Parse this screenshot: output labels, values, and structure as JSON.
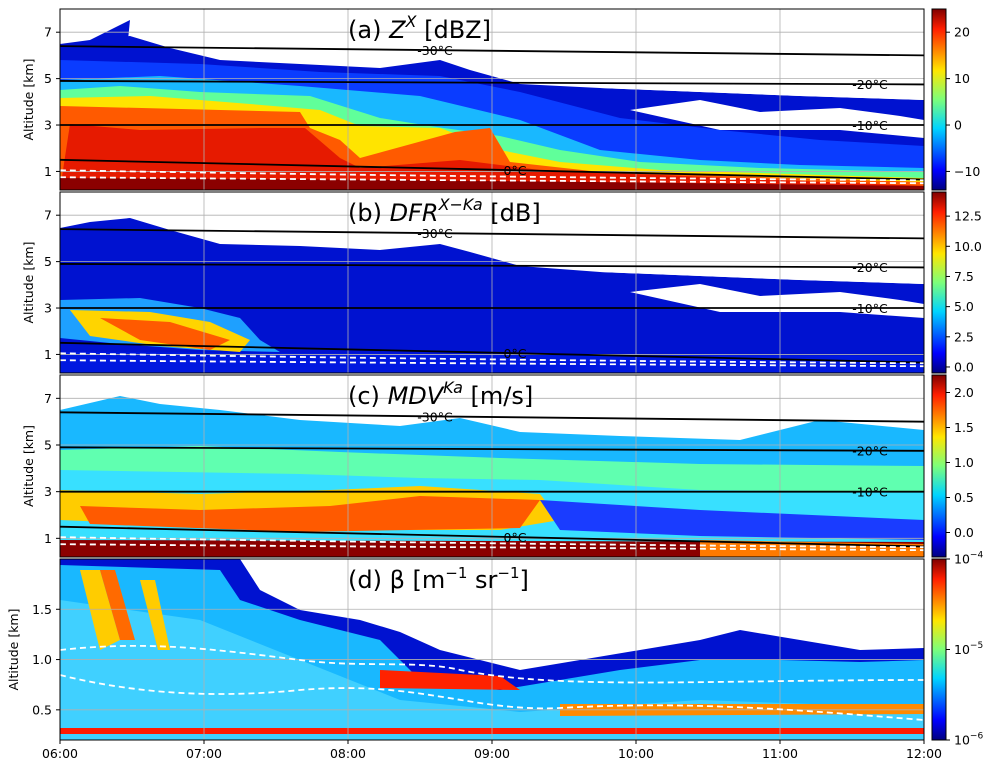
{
  "chart_data": [
    {
      "type": "heatmap",
      "panel": "a",
      "title": "(a) Z",
      "title_sup": "X",
      "title_unit": " [dBZ]",
      "ylabel": "Altitude [km]",
      "ylim": [
        0.2,
        8.0
      ],
      "yticks": [
        1,
        3,
        5,
        7
      ],
      "ytick_labels": [
        "1",
        "3",
        "5",
        "7"
      ],
      "colorbar": {
        "scale": "linear",
        "range": [
          -14,
          25
        ],
        "ticks": [
          -10,
          0,
          10,
          20
        ],
        "tick_labels": [
          "−10",
          "0",
          "10",
          "20"
        ]
      },
      "isotherms": [
        {
          "label": "-30$^\\circ$C",
          "text": "-30",
          "start": 6.4,
          "end": 6.0
        },
        {
          "label": "-20",
          "text": "-20",
          "start": 4.9,
          "end": 4.75
        },
        {
          "label": "-10",
          "text": "-10",
          "start": 3.0,
          "end": 3.0
        },
        {
          "label": "0",
          "text": "0",
          "start": 1.5,
          "end": 0.65
        }
      ]
    },
    {
      "type": "heatmap",
      "panel": "b",
      "title": "(b) DFR",
      "title_sup": "X−Ka",
      "title_unit": " [dB]",
      "ylabel": "Altitude [km]",
      "ylim": [
        0.2,
        8.0
      ],
      "yticks": [
        1,
        3,
        5,
        7
      ],
      "ytick_labels": [
        "1",
        "3",
        "5",
        "7"
      ],
      "colorbar": {
        "scale": "linear",
        "range": [
          -0.5,
          14.5
        ],
        "ticks": [
          0,
          2.5,
          5,
          7.5,
          10,
          12.5
        ],
        "tick_labels": [
          "0.0",
          "2.5",
          "5.0",
          "7.5",
          "10.0",
          "12.5"
        ]
      },
      "isotherms": [
        {
          "text": "-30",
          "start": 6.4,
          "end": 6.0
        },
        {
          "text": "-20",
          "start": 4.9,
          "end": 4.75
        },
        {
          "text": "-10",
          "start": 3.0,
          "end": 3.0
        },
        {
          "text": "0",
          "start": 1.5,
          "end": 0.65
        }
      ]
    },
    {
      "type": "heatmap",
      "panel": "c",
      "title": "(c) MDV",
      "title_sup": "Ka",
      "title_unit": " [m/s]",
      "ylabel": "Altitude [km]",
      "ylim": [
        0.2,
        8.0
      ],
      "yticks": [
        1,
        3,
        5,
        7
      ],
      "ytick_labels": [
        "1",
        "3",
        "5",
        "7"
      ],
      "colorbar": {
        "scale": "linear",
        "range": [
          -0.35,
          2.25
        ],
        "ticks": [
          0,
          0.5,
          1,
          1.5,
          2
        ],
        "tick_labels": [
          "0.0",
          "0.5",
          "1.0",
          "1.5",
          "2.0"
        ]
      },
      "isotherms": [
        {
          "text": "-30",
          "start": 6.4,
          "end": 6.0
        },
        {
          "text": "-20",
          "start": 4.9,
          "end": 4.75
        },
        {
          "text": "-10",
          "start": 3.0,
          "end": 3.0
        },
        {
          "text": "0",
          "start": 1.5,
          "end": 0.65
        }
      ]
    },
    {
      "type": "heatmap",
      "panel": "d",
      "title": "(d) β",
      "title_unit_html": " [m",
      "ylabel": "Altitude [km]",
      "ylim": [
        0.2,
        2.0
      ],
      "yticks": [
        0.5,
        1.0,
        1.5
      ],
      "ytick_labels": [
        "0.5",
        "1.0",
        "1.5"
      ],
      "colorbar": {
        "scale": "log",
        "range": [
          1e-06,
          0.0001
        ],
        "ticks": [
          1e-06,
          1e-05,
          0.0001
        ],
        "tick_labels": [
          "10",
          "10",
          "10"
        ],
        "tick_exps": [
          "−6",
          "−5",
          "−4"
        ]
      }
    }
  ],
  "x_axis": {
    "range": [
      "06:00",
      "12:00"
    ],
    "ticks": [
      "06:00",
      "07:00",
      "08:00",
      "09:00",
      "10:00",
      "11:00",
      "12:00"
    ]
  },
  "degree_suffix": "°C",
  "title_d_unit_parts": {
    "m": " [m",
    "m_exp": "−1",
    "sr": " sr",
    "sr_exp": "−1",
    "close": "]"
  },
  "colors": {
    "isotherm": "#000000",
    "melting_layer": "#ffffff",
    "grid": "#b0b0b0"
  }
}
